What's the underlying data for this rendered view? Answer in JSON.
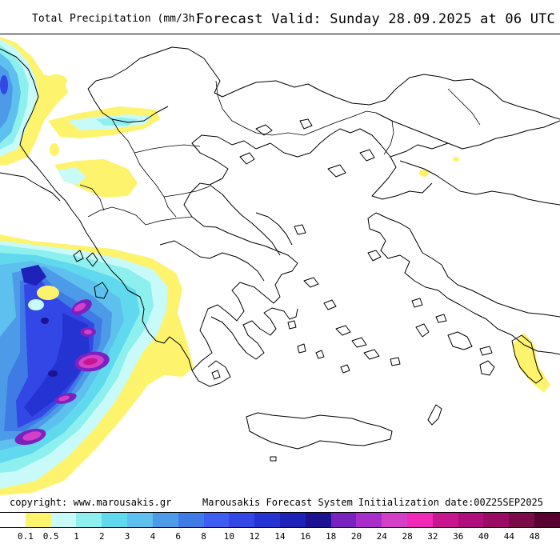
{
  "header": {
    "title": "Total Precipitation (mm/3h)",
    "forecast_valid": "Forecast Valid:  Sunday 28.09.2025 at 06 UTC"
  },
  "footer": {
    "copyright": "copyright: www.marousakis.gr",
    "system": "Marousakis Forecast System",
    "initialization": "Initialization date:00Z25SEP2025"
  },
  "legend": {
    "unit": "mm/3h",
    "tick_labels": [
      "0.1",
      "0.5",
      "1",
      "2",
      "3",
      "4",
      "6",
      "8",
      "10",
      "12",
      "14",
      "16",
      "18",
      "20",
      "24",
      "28",
      "32",
      "36",
      "40",
      "44",
      "48"
    ],
    "colors": [
      "#ffffff",
      "#fdf36c",
      "#c8fafa",
      "#8ef0ee",
      "#60d9ee",
      "#5ec0ee",
      "#4d9be8",
      "#3f7be4",
      "#3d5ef0",
      "#3346e6",
      "#2433d2",
      "#1f22b8",
      "#1c1292",
      "#7a22c0",
      "#a72ec8",
      "#d43fc8",
      "#f028b8",
      "#c8168f",
      "#b00e7c",
      "#9a0c64",
      "#7a0a48",
      "#5a0030"
    ]
  },
  "map": {
    "region": "Greece and the central/eastern Mediterranean",
    "precip_areas": [
      {
        "zone": "Ionian Sea west of Greece",
        "max_class": "36-40"
      },
      {
        "zone": "Northwest Balkans / Adriatic coast",
        "max_class": "8-12"
      },
      {
        "zone": "Southwest of Rhodes",
        "max_class": "0.5-1"
      }
    ]
  }
}
